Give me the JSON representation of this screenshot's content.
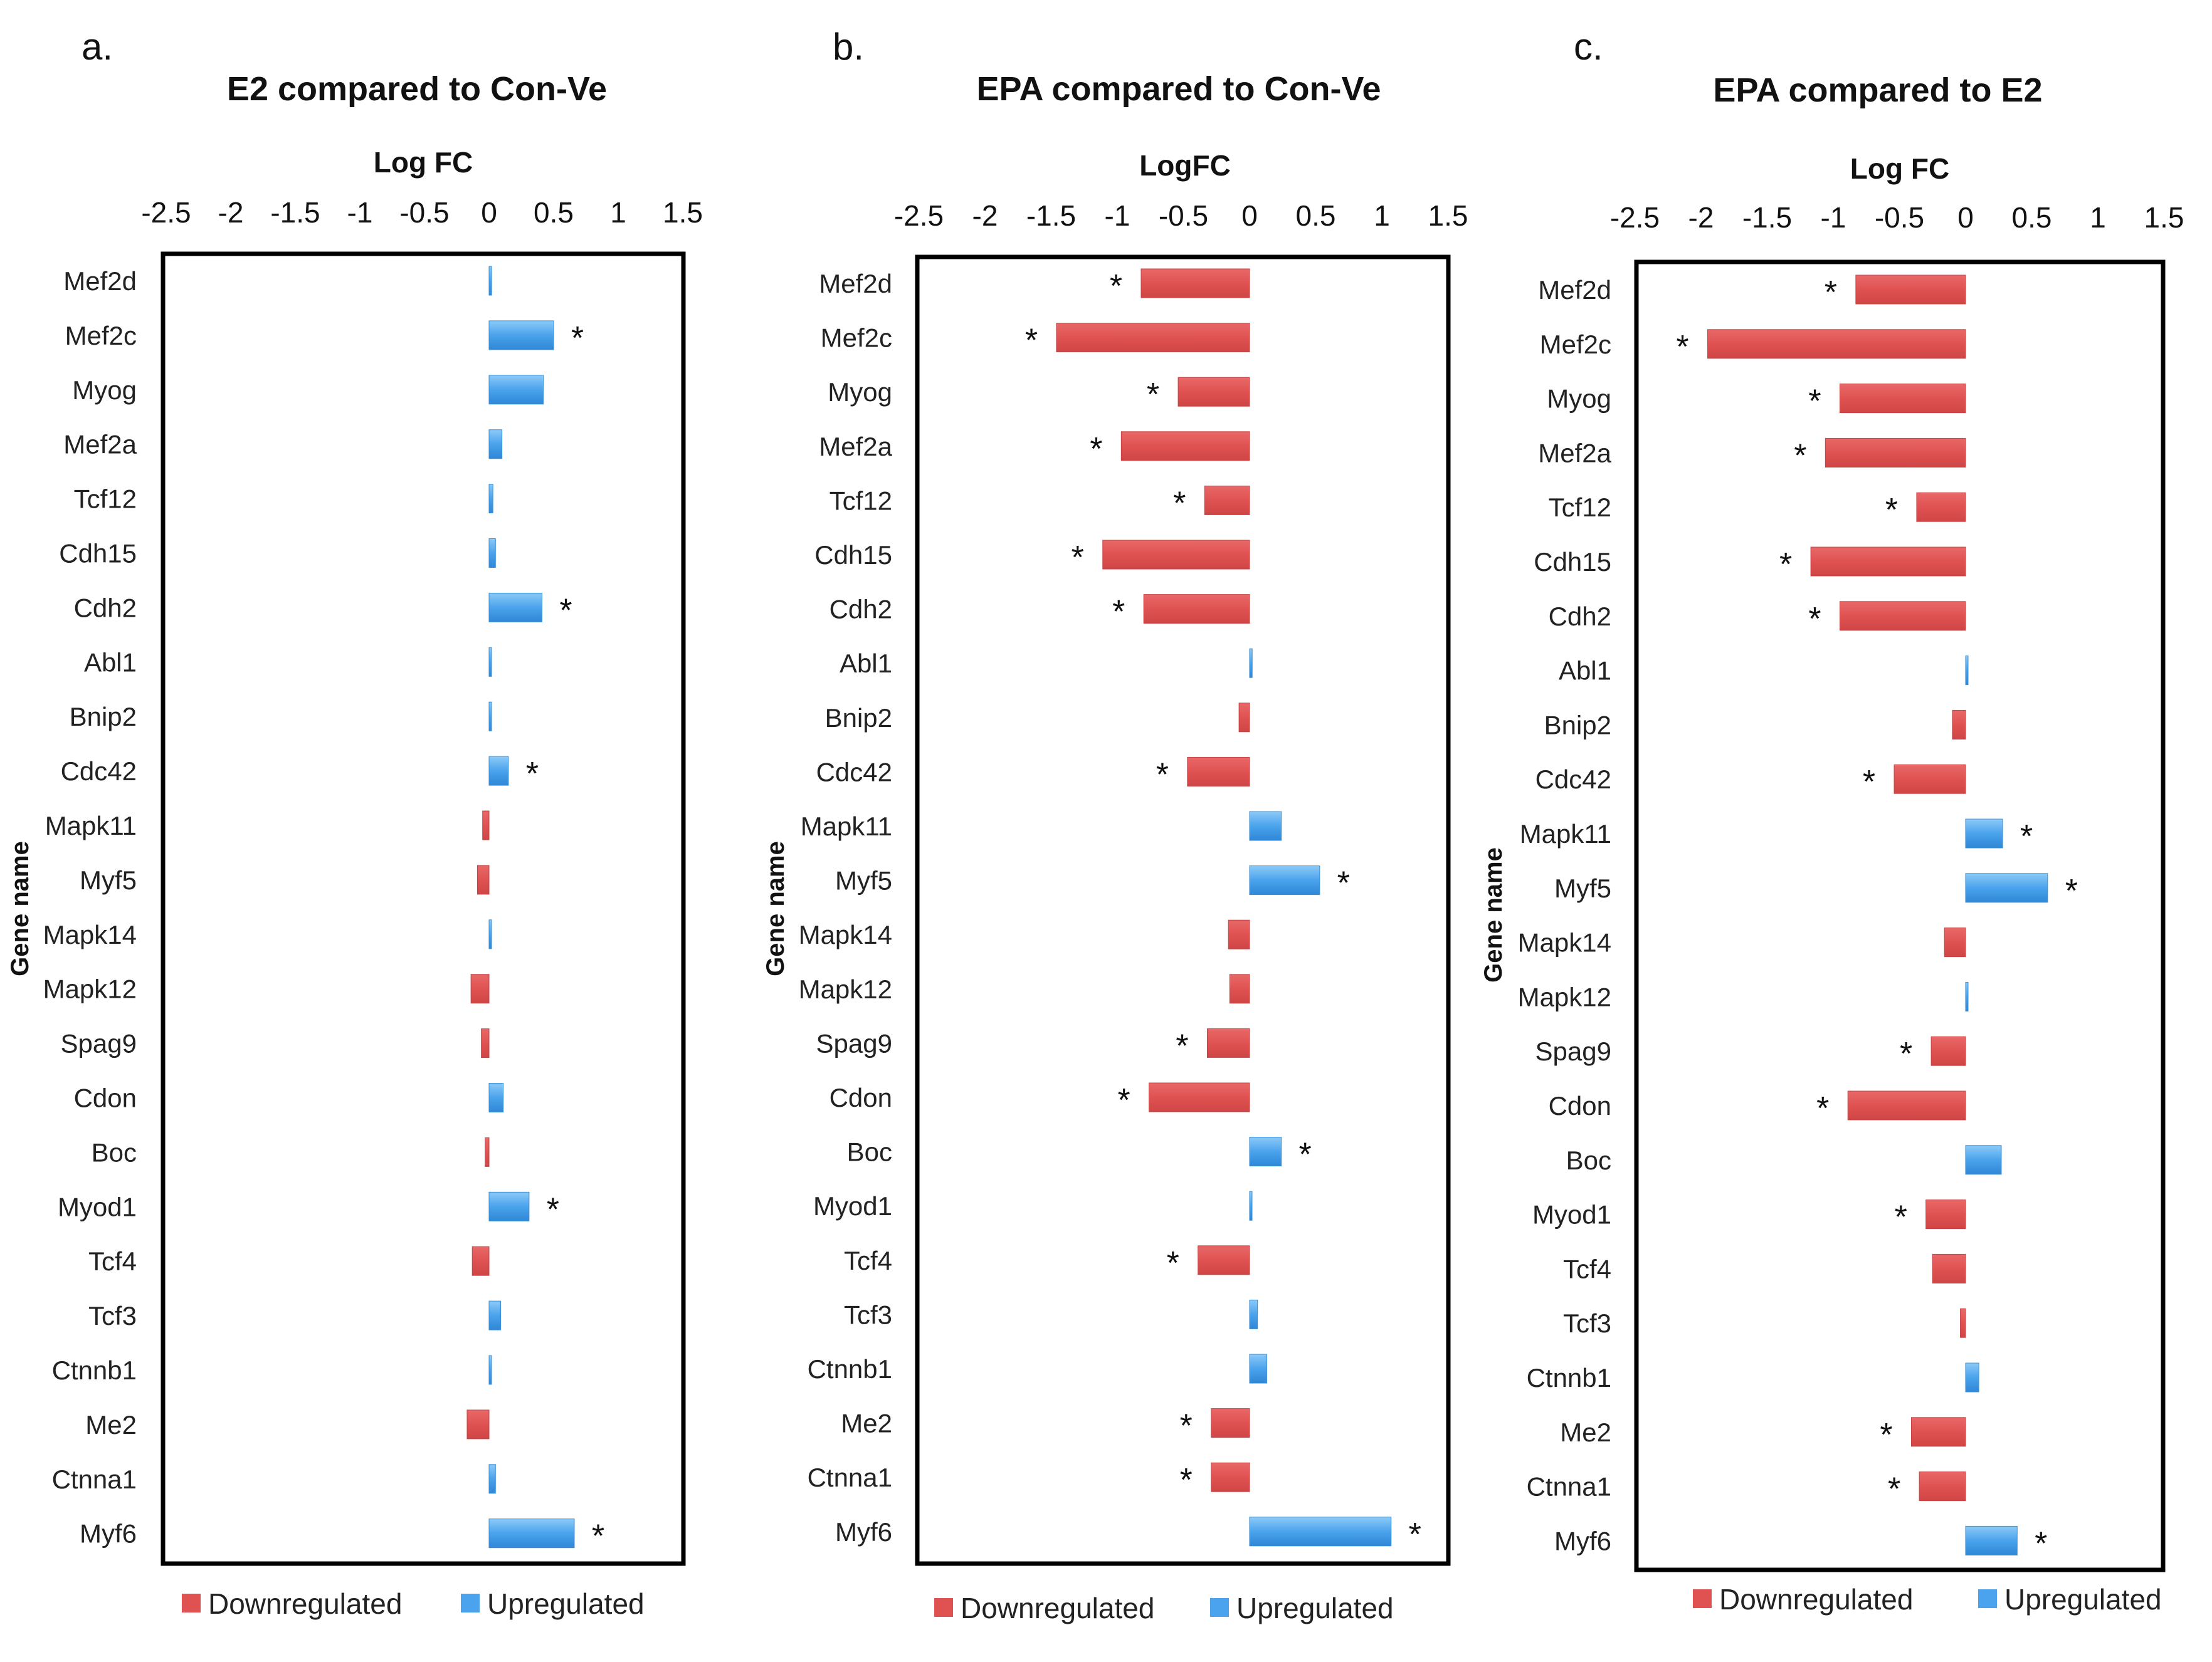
{
  "chart_data": [
    {
      "type": "bar",
      "panel_letter": "a.",
      "title": "E2 compared to Con-Ve",
      "xlabel": "Log FC",
      "ylabel": "Gene name",
      "xlim": [
        -2.5,
        1.5
      ],
      "xticks": [
        -2.5,
        -2,
        -1.5,
        -1,
        -0.5,
        0,
        0.5,
        1,
        1.5
      ],
      "xtick_labels": [
        "-2.5",
        "-2",
        "-1.5",
        "-1",
        "-0.5",
        "0",
        "0.5",
        "1",
        "1.5"
      ],
      "categories": [
        "Mef2d",
        "Mef2c",
        "Myog",
        "Mef2a",
        "Tcf12",
        "Cdh15",
        "Cdh2",
        "Abl1",
        "Bnip2",
        "Cdc42",
        "Mapk11",
        "Myf5",
        "Mapk14",
        "Mapk12",
        "Spag9",
        "Cdon",
        "Boc",
        "Myod1",
        "Tcf4",
        "Tcf3",
        "Ctnnb1",
        "Me2",
        "Ctnna1",
        "Myf6"
      ],
      "values": [
        0.02,
        0.5,
        0.42,
        0.1,
        0.03,
        0.05,
        0.41,
        0.0,
        0.0,
        0.15,
        -0.05,
        -0.09,
        0.0,
        -0.14,
        -0.06,
        0.11,
        -0.03,
        0.31,
        -0.13,
        0.09,
        0.01,
        -0.17,
        0.05,
        0.66
      ],
      "significant": [
        false,
        true,
        false,
        false,
        false,
        false,
        true,
        false,
        false,
        true,
        false,
        false,
        false,
        false,
        false,
        false,
        false,
        true,
        false,
        false,
        false,
        false,
        false,
        true
      ],
      "marker": "*",
      "legend": [
        "Downregulated",
        "Upregulated"
      ],
      "legend_position": "bottom",
      "colors": {
        "down": "#e05252",
        "up": "#4aa3ec"
      }
    },
    {
      "type": "bar",
      "panel_letter": "b.",
      "title": "EPA compared to Con-Ve",
      "xlabel": "LogFC",
      "ylabel": "Gene name",
      "xlim": [
        -2.5,
        1.5
      ],
      "xticks": [
        -2.5,
        -2,
        -1.5,
        -1,
        -0.5,
        0,
        0.5,
        1,
        1.5
      ],
      "xtick_labels": [
        "-2.5",
        "-2",
        "-1.5",
        "-1",
        "-0.5",
        "0",
        "0.5",
        "1",
        "1.5"
      ],
      "categories": [
        "Mef2d",
        "Mef2c",
        "Myog",
        "Mef2a",
        "Tcf12",
        "Cdh15",
        "Cdh2",
        "Abl1",
        "Bnip2",
        "Cdc42",
        "Mapk11",
        "Myf5",
        "Mapk14",
        "Mapk12",
        "Spag9",
        "Cdon",
        "Boc",
        "Myod1",
        "Tcf4",
        "Tcf3",
        "Ctnnb1",
        "Me2",
        "Ctnna1",
        "Myf6"
      ],
      "values": [
        -0.82,
        -1.46,
        -0.54,
        -0.97,
        -0.34,
        -1.11,
        -0.8,
        0.02,
        -0.08,
        -0.47,
        0.24,
        0.53,
        -0.16,
        -0.15,
        -0.32,
        -0.76,
        0.24,
        0.0,
        -0.39,
        0.06,
        0.13,
        -0.29,
        -0.29,
        1.07
      ],
      "significant": [
        true,
        true,
        true,
        true,
        true,
        true,
        true,
        false,
        false,
        true,
        false,
        true,
        false,
        false,
        true,
        true,
        true,
        false,
        true,
        false,
        false,
        true,
        true,
        true
      ],
      "marker": "*",
      "legend": [
        "Downregulated",
        "Upregulated"
      ],
      "legend_position": "bottom",
      "colors": {
        "down": "#e05252",
        "up": "#4aa3ec"
      }
    },
    {
      "type": "bar",
      "panel_letter": "c.",
      "title": "EPA compared to E2",
      "xlabel": "Log FC",
      "ylabel": "Gene name",
      "xlim": [
        -2.5,
        1.5
      ],
      "xticks": [
        -2.5,
        -2,
        -1.5,
        -1,
        -0.5,
        0,
        0.5,
        1,
        1.5
      ],
      "xtick_labels": [
        "-2.5",
        "-2",
        "-1.5",
        "-1",
        "-0.5",
        "0",
        "0.5",
        "1",
        "1.5"
      ],
      "categories": [
        "Mef2d",
        "Mef2c",
        "Myog",
        "Mef2a",
        "Tcf12",
        "Cdh15",
        "Cdh2",
        "Abl1",
        "Bnip2",
        "Cdc42",
        "Mapk11",
        "Myf5",
        "Mapk14",
        "Mapk12",
        "Spag9",
        "Cdon",
        "Boc",
        "Myod1",
        "Tcf4",
        "Tcf3",
        "Ctnnb1",
        "Me2",
        "Ctnna1",
        "Myf6"
      ],
      "values": [
        -0.83,
        -1.95,
        -0.95,
        -1.06,
        -0.37,
        -1.17,
        -0.95,
        0.0,
        -0.1,
        -0.54,
        0.28,
        0.62,
        -0.16,
        0.0,
        -0.26,
        -0.89,
        0.27,
        -0.3,
        -0.25,
        -0.04,
        0.1,
        -0.41,
        -0.35,
        0.39
      ],
      "significant": [
        true,
        true,
        true,
        true,
        true,
        true,
        true,
        false,
        false,
        true,
        true,
        true,
        false,
        false,
        true,
        true,
        false,
        true,
        false,
        false,
        false,
        true,
        true,
        true
      ],
      "marker": "*",
      "legend": [
        "Downregulated",
        "Upregulated"
      ],
      "legend_position": "bottom",
      "colors": {
        "down": "#e05252",
        "up": "#4aa3ec"
      }
    }
  ]
}
